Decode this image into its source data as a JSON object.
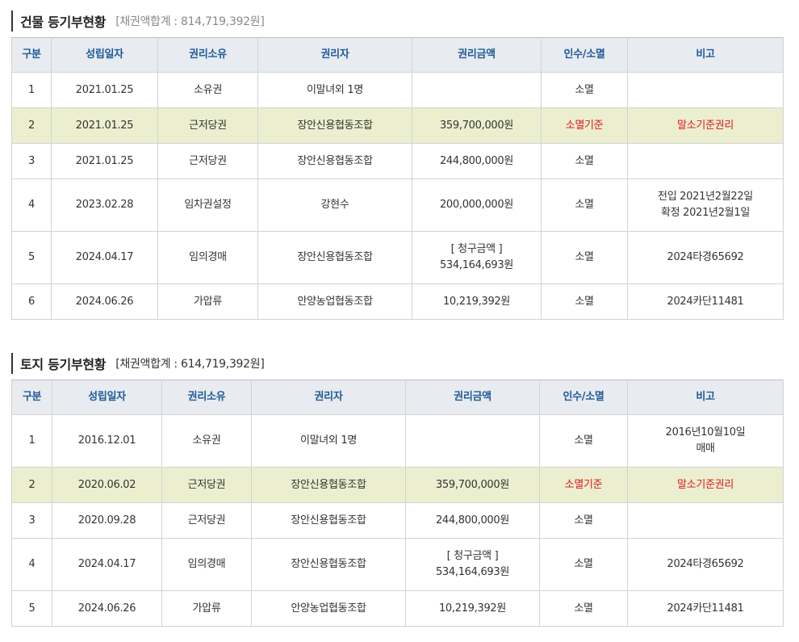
{
  "building": {
    "title": "건물 등기부현황",
    "total": "[채권액합계 : 814,719,392원]",
    "headers": [
      "구분",
      "성립일자",
      "권리소유",
      "권리자",
      "권리금액",
      "인수/소멸",
      "비고"
    ],
    "rows": [
      {
        "no": "1",
        "date": "2021.01.25",
        "type": "소유권",
        "holder": "이말녀외 1명",
        "amount_label": "",
        "amount": "",
        "status": "소멸",
        "note1": "",
        "note2": "",
        "highlight": false
      },
      {
        "no": "2",
        "date": "2021.01.25",
        "type": "근저당권",
        "holder": "장안신용협동조합",
        "amount_label": "",
        "amount": "359,700,000원",
        "status": "소멸기준",
        "note1": "말소기준권리",
        "note2": "",
        "highlight": true
      },
      {
        "no": "3",
        "date": "2021.01.25",
        "type": "근저당권",
        "holder": "장안신용협동조합",
        "amount_label": "",
        "amount": "244,800,000원",
        "status": "소멸",
        "note1": "",
        "note2": "",
        "highlight": false
      },
      {
        "no": "4",
        "date": "2023.02.28",
        "type": "임차권설정",
        "holder": "강현수",
        "amount_label": "",
        "amount": "200,000,000원",
        "status": "소멸",
        "note1": "전입 2021년2월22일",
        "note2": "확정 2021년2월1일",
        "highlight": false
      },
      {
        "no": "5",
        "date": "2024.04.17",
        "type": "임의경매",
        "holder": "장안신용협동조합",
        "amount_label": "[ 청구금액 ]",
        "amount": "534,164,693원",
        "status": "소멸",
        "note1": "2024타경65692",
        "note2": "",
        "highlight": false
      },
      {
        "no": "6",
        "date": "2024.06.26",
        "type": "가압류",
        "holder": "안양농업협동조합",
        "amount_label": "",
        "amount": "10,219,392원",
        "status": "소멸",
        "note1": "2024카단11481",
        "note2": "",
        "highlight": false
      }
    ]
  },
  "land": {
    "title": "토지 등기부현황",
    "total": "[채권액합계 : 614,719,392원]",
    "headers": [
      "구분",
      "성립일자",
      "권리소유",
      "권리자",
      "권리금액",
      "인수/소멸",
      "비고"
    ],
    "rows": [
      {
        "no": "1",
        "date": "2016.12.01",
        "type": "소유권",
        "holder": "이말녀외 1명",
        "amount_label": "",
        "amount": "",
        "status": "소멸",
        "note1": "2016년10월10일",
        "note2": "매매",
        "highlight": false
      },
      {
        "no": "2",
        "date": "2020.06.02",
        "type": "근저당권",
        "holder": "장안신용협동조합",
        "amount_label": "",
        "amount": "359,700,000원",
        "status": "소멸기준",
        "note1": "말소기준권리",
        "note2": "",
        "highlight": true
      },
      {
        "no": "3",
        "date": "2020.09.28",
        "type": "근저당권",
        "holder": "장안신용협동조합",
        "amount_label": "",
        "amount": "244,800,000원",
        "status": "소멸",
        "note1": "",
        "note2": "",
        "highlight": false
      },
      {
        "no": "4",
        "date": "2024.04.17",
        "type": "임의경매",
        "holder": "장안신용협동조합",
        "amount_label": "[ 청구금액 ]",
        "amount": "534,164,693원",
        "status": "소멸",
        "note1": "2024타경65692",
        "note2": "",
        "highlight": false
      },
      {
        "no": "5",
        "date": "2024.06.26",
        "type": "가압류",
        "holder": "안양농업협동조합",
        "amount_label": "",
        "amount": "10,219,392원",
        "status": "소멸",
        "note1": "2024카단11481",
        "note2": "",
        "highlight": false
      }
    ]
  }
}
